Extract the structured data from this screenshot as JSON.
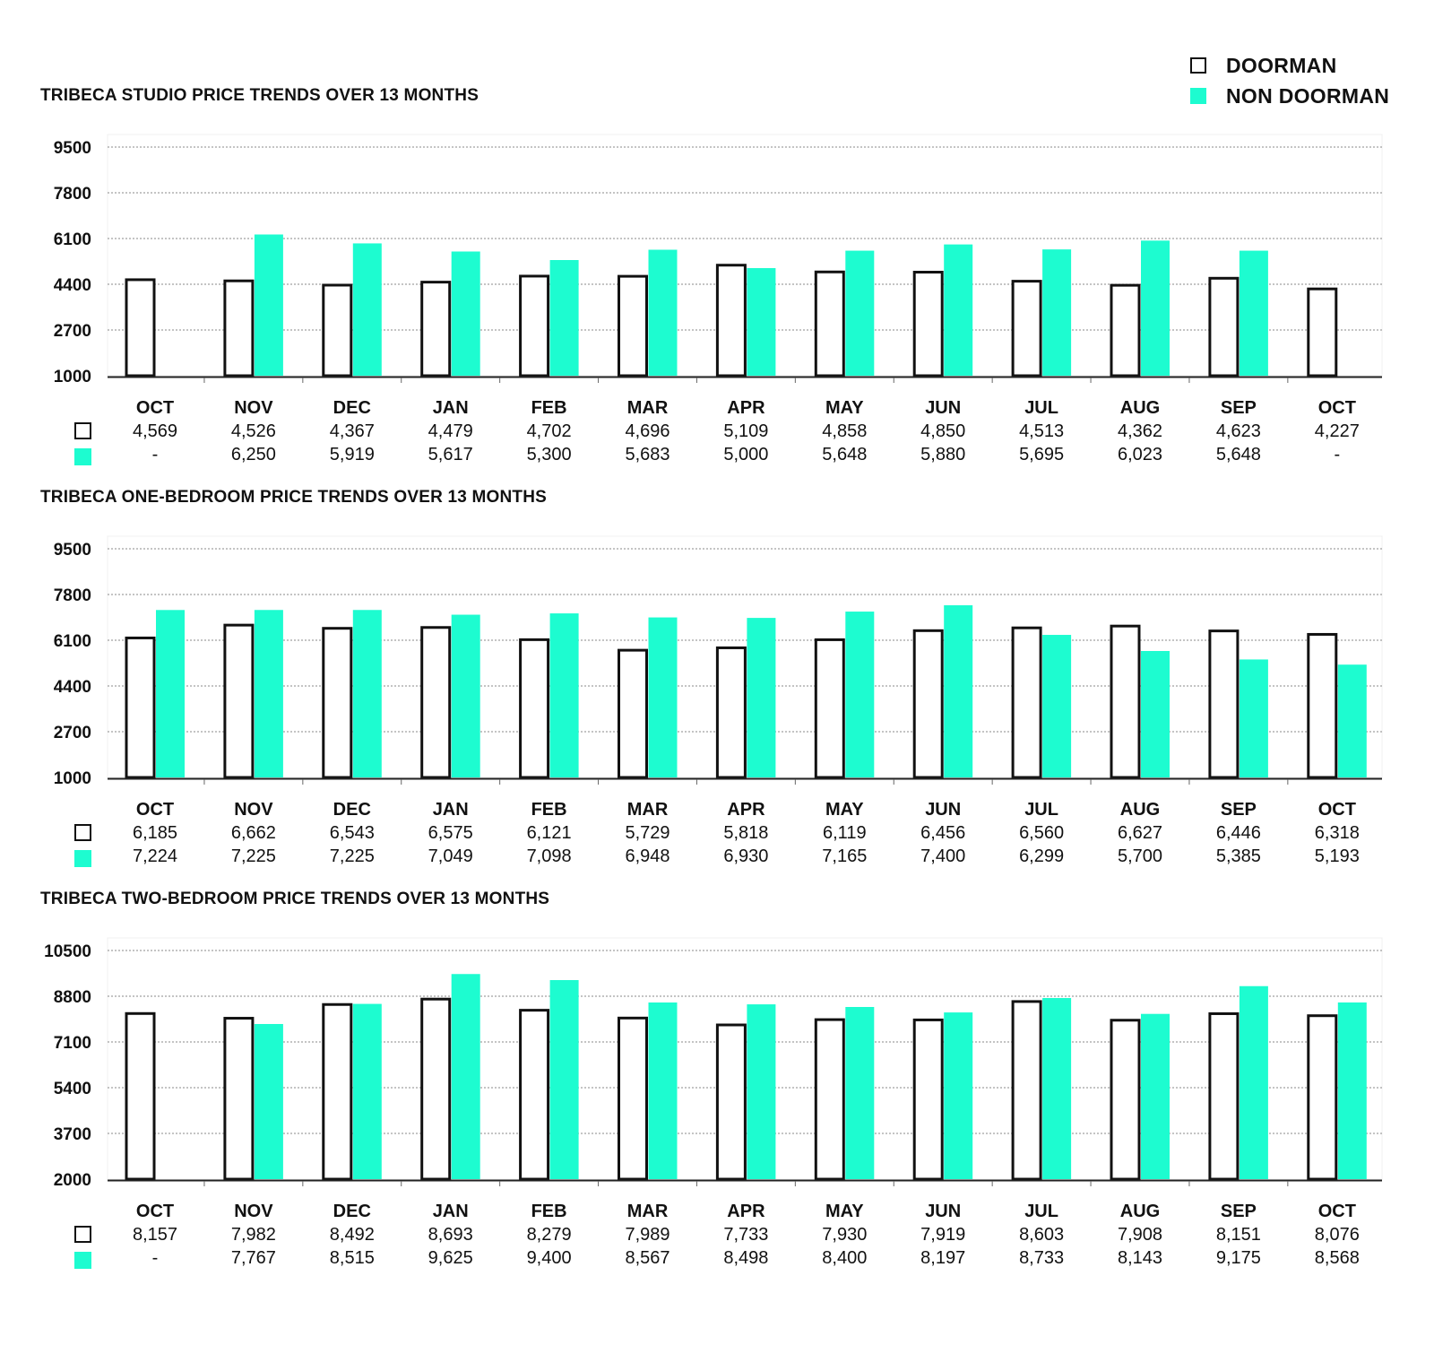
{
  "legend": {
    "doorman_label": "DOORMAN",
    "non_doorman_label": "NON DOORMAN"
  },
  "colors": {
    "doorman_fill": "#ffffff",
    "doorman_stroke": "#111111",
    "non_doorman": "#1dfcd0",
    "grid": "#888888"
  },
  "missing_placeholder": "-",
  "chart_data": [
    {
      "type": "bar",
      "title": "TRIBECA STUDIO PRICE TRENDS OVER 13 MONTHS",
      "categories": [
        "OCT",
        "NOV",
        "DEC",
        "JAN",
        "FEB",
        "MAR",
        "APR",
        "MAY",
        "JUN",
        "JUL",
        "AUG",
        "SEP",
        "OCT"
      ],
      "yticks": [
        "9500",
        "7800",
        "6100",
        "4400",
        "2700",
        "1000"
      ],
      "ylim": [
        1000,
        9500
      ],
      "grid": true,
      "legend_position": "top-right",
      "series": [
        {
          "key": "doorman",
          "name": "DOORMAN",
          "values": [
            4569,
            4526,
            4367,
            4479,
            4702,
            4696,
            5109,
            4858,
            4850,
            4513,
            4362,
            4623,
            4227
          ],
          "labels": [
            "4,569",
            "4,526",
            "4,367",
            "4,479",
            "4,702",
            "4,696",
            "5,109",
            "4,858",
            "4,850",
            "4,513",
            "4,362",
            "4,623",
            "4,227"
          ]
        },
        {
          "key": "non_doorman",
          "name": "NON DOORMAN",
          "values": [
            null,
            6250,
            5919,
            5617,
            5300,
            5683,
            5000,
            5648,
            5880,
            5695,
            6023,
            5648,
            null
          ],
          "labels": [
            "-",
            "6,250",
            "5,919",
            "5,617",
            "5,300",
            "5,683",
            "5,000",
            "5,648",
            "5,880",
            "5,695",
            "6,023",
            "5,648",
            "-"
          ]
        }
      ]
    },
    {
      "type": "bar",
      "title": "TRIBECA ONE-BEDROOM PRICE TRENDS OVER 13 MONTHS",
      "categories": [
        "OCT",
        "NOV",
        "DEC",
        "JAN",
        "FEB",
        "MAR",
        "APR",
        "MAY",
        "JUN",
        "JUL",
        "AUG",
        "SEP",
        "OCT"
      ],
      "yticks": [
        "9500",
        "7800",
        "6100",
        "4400",
        "2700",
        "1000"
      ],
      "ylim": [
        1000,
        9500
      ],
      "grid": true,
      "legend_position": "top-right",
      "series": [
        {
          "key": "doorman",
          "name": "DOORMAN",
          "values": [
            6185,
            6662,
            6543,
            6575,
            6121,
            5729,
            5818,
            6119,
            6456,
            6560,
            6627,
            6446,
            6318
          ],
          "labels": [
            "6,185",
            "6,662",
            "6,543",
            "6,575",
            "6,121",
            "5,729",
            "5,818",
            "6,119",
            "6,456",
            "6,560",
            "6,627",
            "6,446",
            "6,318"
          ]
        },
        {
          "key": "non_doorman",
          "name": "NON DOORMAN",
          "values": [
            7224,
            7225,
            7225,
            7049,
            7098,
            6948,
            6930,
            7165,
            7400,
            6299,
            5700,
            5385,
            5193
          ],
          "labels": [
            "7,224",
            "7,225",
            "7,225",
            "7,049",
            "7,098",
            "6,948",
            "6,930",
            "7,165",
            "7,400",
            "6,299",
            "5,700",
            "5,385",
            "5,193"
          ]
        }
      ]
    },
    {
      "type": "bar",
      "title": "TRIBECA TWO-BEDROOM PRICE TRENDS OVER 13 MONTHS",
      "categories": [
        "OCT",
        "NOV",
        "DEC",
        "JAN",
        "FEB",
        "MAR",
        "APR",
        "MAY",
        "JUN",
        "JUL",
        "AUG",
        "SEP",
        "OCT"
      ],
      "yticks": [
        "10500",
        "8800",
        "7100",
        "5400",
        "3700",
        "2000"
      ],
      "ylim": [
        2000,
        10500
      ],
      "grid": true,
      "legend_position": "top-right",
      "series": [
        {
          "key": "doorman",
          "name": "DOORMAN",
          "values": [
            8157,
            7982,
            8492,
            8693,
            8279,
            7989,
            7733,
            7930,
            7919,
            8603,
            7908,
            8151,
            8076
          ],
          "labels": [
            "8,157",
            "7,982",
            "8,492",
            "8,693",
            "8,279",
            "7,989",
            "7,733",
            "7,930",
            "7,919",
            "8,603",
            "7,908",
            "8,151",
            "8,076"
          ]
        },
        {
          "key": "non_doorman",
          "name": "NON DOORMAN",
          "values": [
            null,
            7767,
            8515,
            9625,
            9400,
            8567,
            8498,
            8400,
            8197,
            8733,
            8143,
            9175,
            8568
          ],
          "labels": [
            "-",
            "7,767",
            "8,515",
            "9,625",
            "9,400",
            "8,567",
            "8,498",
            "8,400",
            "8,197",
            "8,733",
            "8,143",
            "9,175",
            "8,568"
          ]
        }
      ]
    }
  ]
}
